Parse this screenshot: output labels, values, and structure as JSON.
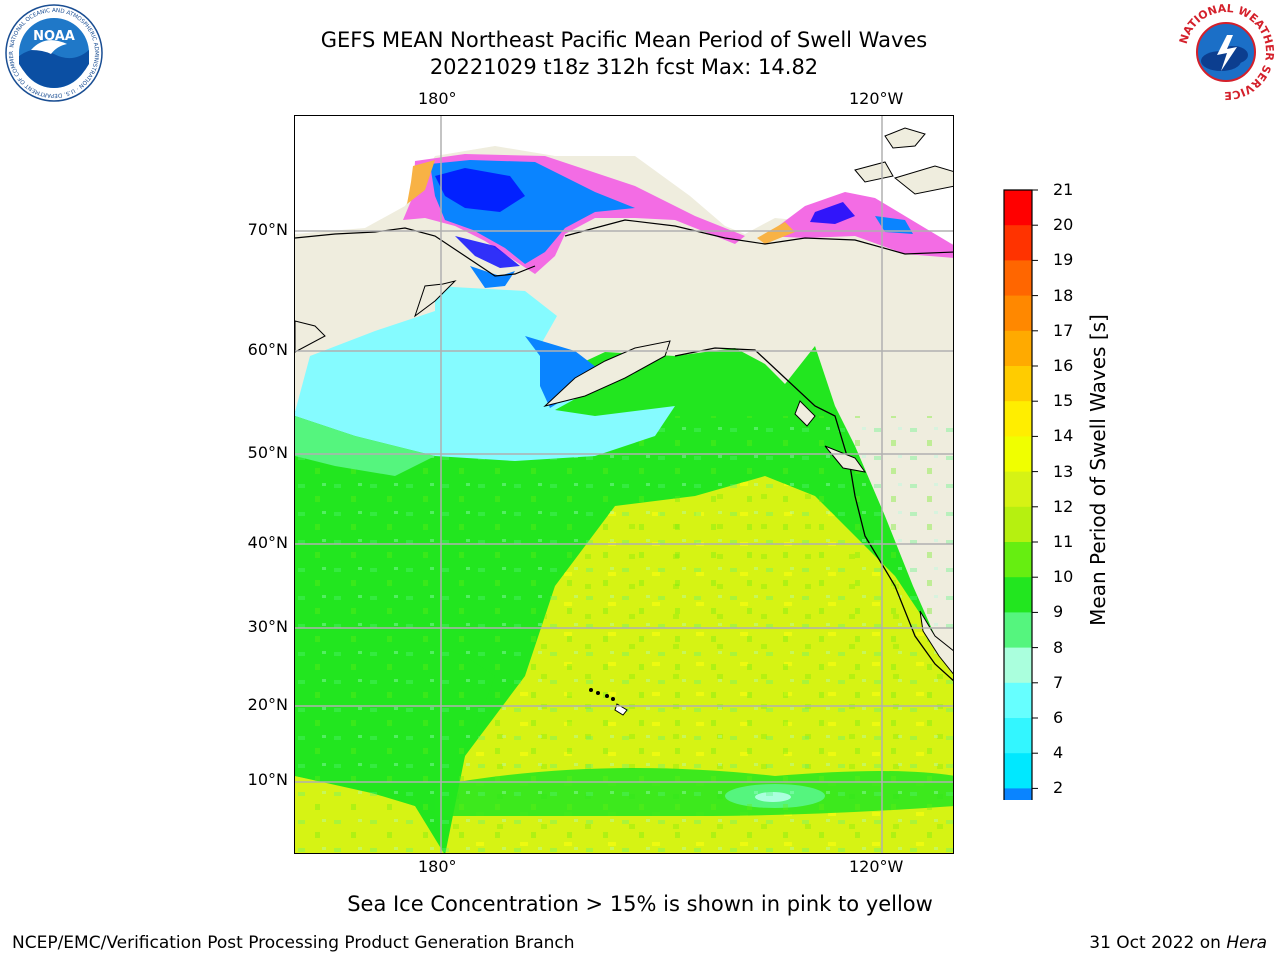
{
  "title": {
    "line1": "GEFS MEAN Northeast Pacific Mean Period of Swell Waves",
    "line2": "20221029 t18z 312h fcst   Max: 14.82"
  },
  "logos": {
    "left_icon": "noaa-logo",
    "right_icon": "nws-logo",
    "left_ring_text": "NATIONAL OCEANIC AND ATMOSPHERIC ADMINISTRATION · U.S. DEPARTMENT OF COMMERCE",
    "left_center_text": "NOAA",
    "right_ring_text": "NATIONAL WEATHER SERVICE"
  },
  "map": {
    "lon_labels_top": [
      "180°",
      "120°W"
    ],
    "lon_labels_bottom": [
      "180°",
      "120°W"
    ],
    "lat_labels": [
      "70°N",
      "60°N",
      "50°N",
      "40°N",
      "30°N",
      "20°N",
      "10°N"
    ],
    "colors": {
      "land": "#efedde",
      "ocean_green": "#22e61f",
      "ocean_yellow": "#d6f314",
      "ocean_cyan": "#85fbff",
      "ice_blue": "#0a84ff",
      "ice_pink": "#f36ce4",
      "ice_orange": "#f8b245"
    }
  },
  "colorbar": {
    "label": "Mean Period of Swell Waves [s]",
    "ticks": [
      "21",
      "20",
      "19",
      "18",
      "17",
      "16",
      "15",
      "14",
      "13",
      "12",
      "11",
      "10",
      "9",
      "8",
      "7",
      "6",
      "4",
      "2"
    ],
    "colors_top_to_bottom": [
      "#ff0000",
      "#ff3300",
      "#ff6600",
      "#ff8800",
      "#ffaa00",
      "#ffcc00",
      "#ffee00",
      "#f0ff00",
      "#d6f314",
      "#b6f010",
      "#66ee11",
      "#22e61f",
      "#55f57e",
      "#aaffdd",
      "#66ffff",
      "#33f6ff",
      "#00e8ff",
      "#0a84ff"
    ],
    "extend_color": "#0000ff"
  },
  "note": "Sea Ice Concentration > 15% is shown in pink to yellow",
  "footer": {
    "left": "NCEP/EMC/Verification Post Processing Product Generation Branch",
    "right_prefix": "31 Oct 2022 on ",
    "right_italic": "Hera"
  }
}
